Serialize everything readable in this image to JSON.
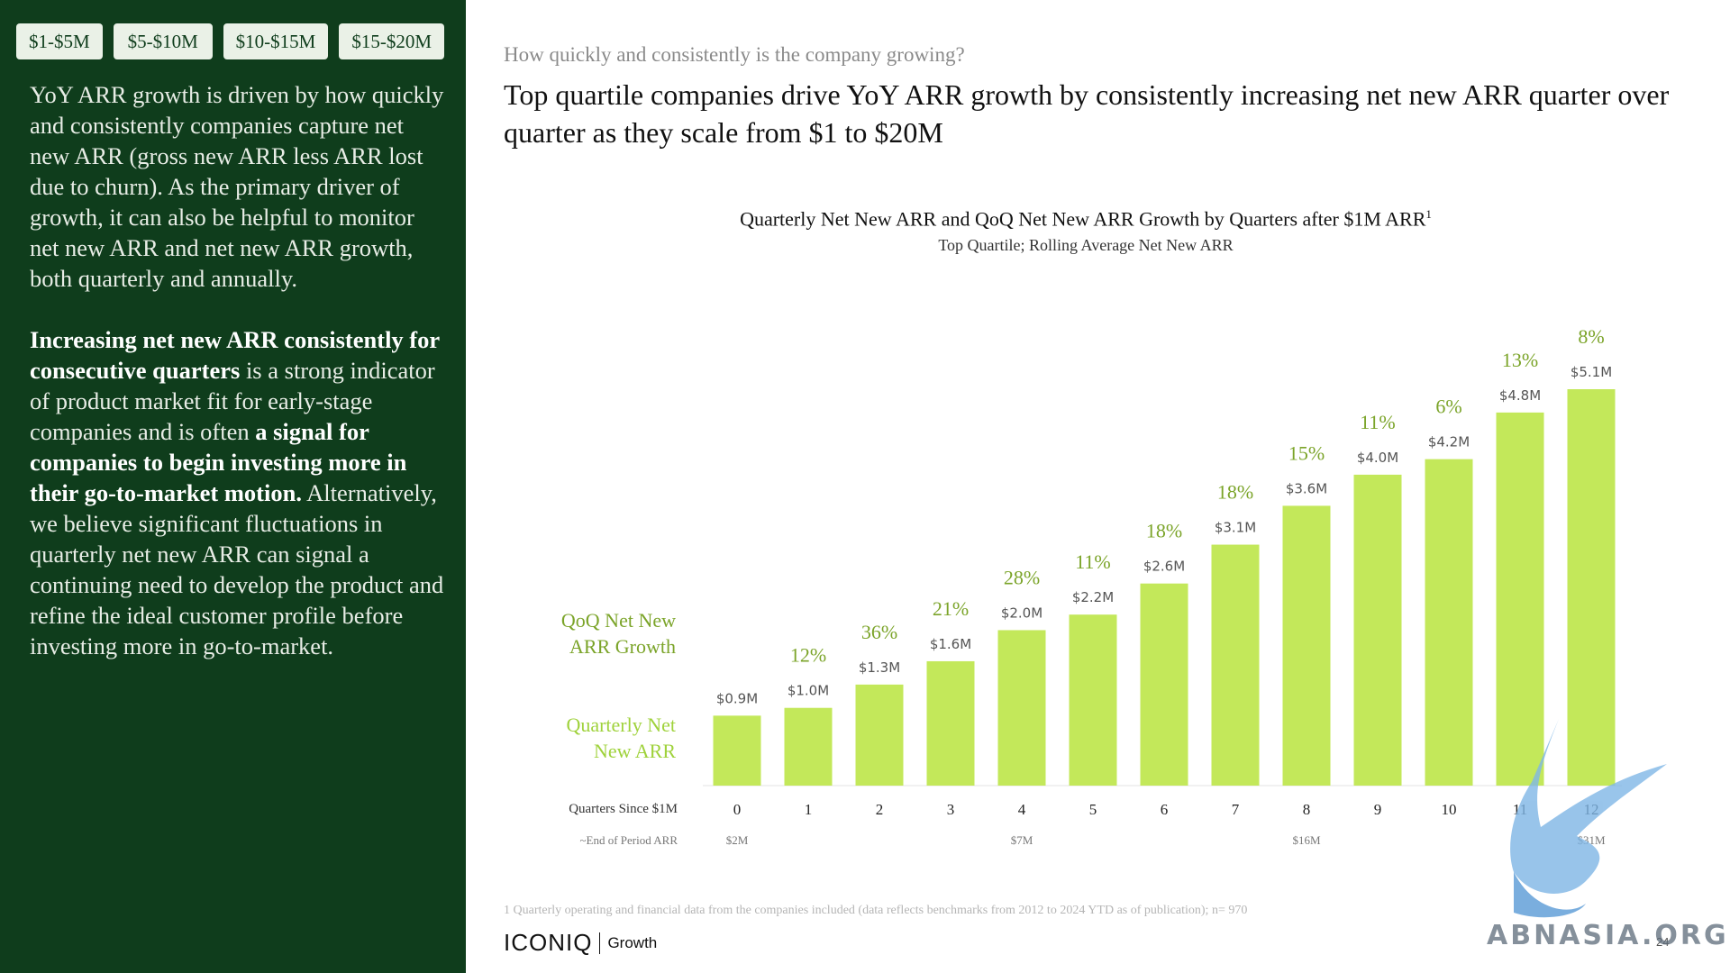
{
  "tabs": [
    "$1-$5M",
    "$5-$10M",
    "$10-$15M",
    "$15-$20M"
  ],
  "left_panel": {
    "p1": "YoY ARR growth is driven by how quickly and consistently companies capture net new ARR (gross new ARR less ARR lost due to churn). As the primary driver of growth, it can also be helpful to monitor net new ARR and net new ARR growth, both quarterly and annually.",
    "p2_bold1": "Increasing net new ARR consistently for consecutive quarters",
    "p2_text1": " is a strong indicator of product market fit for early-stage companies and is often ",
    "p2_bold2": "a signal for companies to begin investing more in their go-to-market motion.",
    "p2_text2": " Alternatively, we believe significant fluctuations in quarterly net new ARR can signal a continuing need to develop the product and refine the ideal customer profile before investing more in go-to-market."
  },
  "eyebrow": "How quickly and consistently is the company growing?",
  "headline": "Top quartile companies drive YoY ARR growth by consistently increasing net new ARR quarter over quarter as they scale from $1 to $20M",
  "legend": {
    "growth_line1": "QoQ Net New",
    "growth_line2": "ARR Growth",
    "arr_line1": "Quarterly Net",
    "arr_line2": "New ARR"
  },
  "row_labels": {
    "quarters": "Quarters Since $1M",
    "end_arr": "~End of Period ARR"
  },
  "chart_data": {
    "type": "bar",
    "title": "Quarterly Net New ARR and QoQ Net New ARR Growth by Quarters after $1M ARR",
    "title_sup": "1",
    "subtitle": "Top Quartile; Rolling Average Net New ARR",
    "categories": [
      "0",
      "1",
      "2",
      "3",
      "4",
      "5",
      "6",
      "7",
      "8",
      "9",
      "10",
      "11",
      "12"
    ],
    "series": [
      {
        "name": "Quarterly Net New ARR",
        "values": [
          0.9,
          1.0,
          1.3,
          1.6,
          2.0,
          2.2,
          2.6,
          3.1,
          3.6,
          4.0,
          4.2,
          4.8,
          5.1
        ],
        "value_labels": [
          "$0.9M",
          "$1.0M",
          "$1.3M",
          "$1.6M",
          "$2.0M",
          "$2.2M",
          "$2.6M",
          "$3.1M",
          "$3.6M",
          "$4.0M",
          "$4.2M",
          "$4.8M",
          "$5.1M"
        ]
      },
      {
        "name": "QoQ Net New ARR Growth",
        "value_labels": [
          "",
          "12%",
          "36%",
          "21%",
          "28%",
          "11%",
          "18%",
          "18%",
          "15%",
          "11%",
          "6%",
          "13%",
          "8%"
        ]
      }
    ],
    "end_of_period_arr": [
      "$2M",
      "",
      "",
      "",
      "$7M",
      "",
      "",
      "",
      "$16M",
      "",
      "",
      "",
      "$31M"
    ],
    "ylim": [
      0,
      5.5
    ],
    "colors": {
      "bar": "#c3e85a",
      "growth": "#7ba429",
      "value": "#555555"
    }
  },
  "footnote": "1 Quarterly operating and financial data from the companies included (data reflects benchmarks from 2012 to 2024 YTD as of publication); n= 970",
  "logo": {
    "main": "ICONIQ",
    "sub": "Growth"
  },
  "page_number": "24",
  "watermark": "ABNASIA.ORG",
  "colors": {
    "panel": "#0f3d1c",
    "accent": "#9fd23b"
  }
}
